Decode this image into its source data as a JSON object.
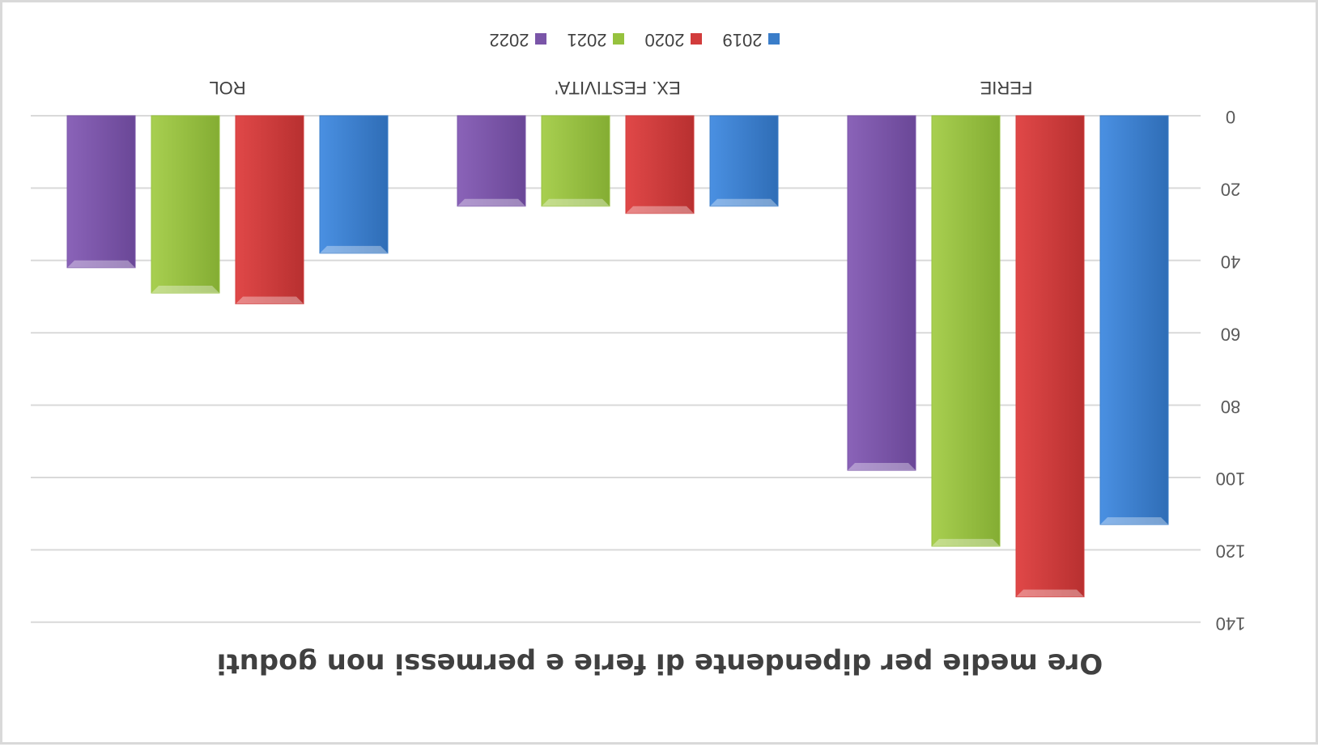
{
  "chart_data": {
    "type": "bar",
    "orientation": "rotated-180",
    "title": "Ore medie per dipendente di ferie e permessi non goduti",
    "categories": [
      "FERIE",
      "EX. FESTIVITA'",
      "ROL"
    ],
    "series": [
      {
        "name": "2019",
        "values": [
          113,
          25,
          38
        ]
      },
      {
        "name": "2020",
        "values": [
          133,
          27,
          52
        ]
      },
      {
        "name": "2021",
        "values": [
          119,
          25,
          49
        ]
      },
      {
        "name": "2022",
        "values": [
          98,
          25,
          42
        ]
      }
    ],
    "ylim": [
      0,
      140
    ],
    "yticks": [
      "0",
      "20",
      "40",
      "60",
      "80",
      "100",
      "120",
      "140"
    ],
    "grid": true,
    "legend_position": "top",
    "colors": {
      "2019": "#3a7dc9",
      "2020": "#d23c3c",
      "2021": "#96c23e",
      "2022": "#7a55a8"
    }
  }
}
